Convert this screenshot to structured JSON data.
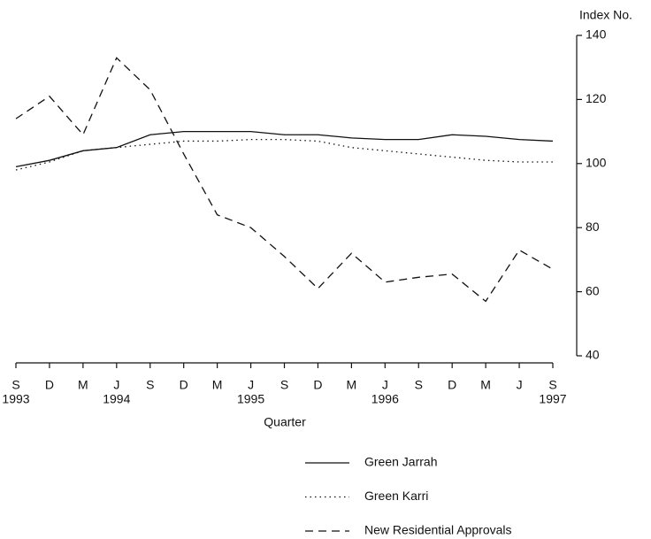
{
  "chart_data": {
    "type": "line",
    "y_axis_label": "Index No.",
    "x_axis_label": "Quarter",
    "categories": [
      "S",
      "D",
      "M",
      "J",
      "S",
      "D",
      "M",
      "J",
      "S",
      "D",
      "M",
      "J",
      "S",
      "D",
      "M",
      "J",
      "S"
    ],
    "category_years": [
      "1993",
      null,
      null,
      "1994",
      null,
      null,
      null,
      "1995",
      null,
      null,
      null,
      "1996",
      null,
      null,
      null,
      null,
      "1997"
    ],
    "ylim": [
      40,
      140
    ],
    "yticks": [
      40,
      60,
      80,
      100,
      120,
      140
    ],
    "y_axis_side": "right",
    "series": [
      {
        "name": "Green Jarrah",
        "color": "#111111",
        "dash": "solid",
        "values": [
          99,
          101,
          104,
          105,
          109,
          110,
          110,
          110,
          109,
          109,
          108,
          107.5,
          107.5,
          109,
          108.5,
          107.5,
          107
        ]
      },
      {
        "name": "Green Karri",
        "color": "#111111",
        "dash": "dotted",
        "values": [
          98,
          100.5,
          104,
          105,
          106,
          107,
          107,
          107.5,
          107.5,
          107,
          105,
          104,
          103,
          102,
          101,
          100.5,
          100.5
        ]
      },
      {
        "name": "New Residential Approvals",
        "color": "#111111",
        "dash": "dashed",
        "values": [
          114,
          121,
          109,
          133,
          123,
          103,
          84,
          80,
          71,
          61,
          72,
          63,
          64.5,
          65.5,
          57,
          73,
          67
        ]
      }
    ]
  }
}
